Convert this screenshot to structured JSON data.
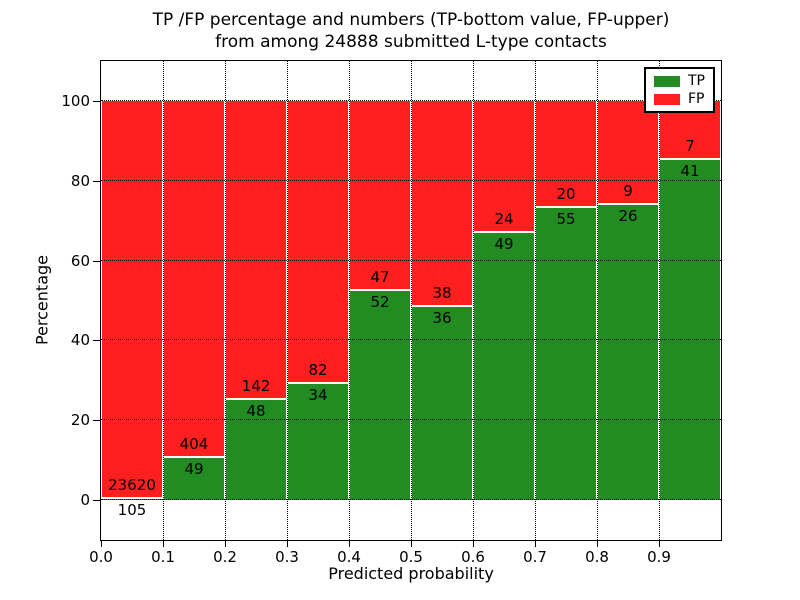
{
  "title": {
    "line1": "TP /FP percentage and numbers (TP-bottom value, FP-upper)",
    "line2": "from among 24888 submitted L-type contacts"
  },
  "axes": {
    "x_label": "Predicted probability",
    "y_label": "Percentage",
    "x_tick_labels": [
      "0.0",
      "0.1",
      "0.2",
      "0.3",
      "0.4",
      "0.5",
      "0.6",
      "0.7",
      "0.8",
      "0.9"
    ],
    "y_tick_labels": [
      "0",
      "20",
      "40",
      "60",
      "80",
      "100"
    ],
    "y_tick_values": [
      0,
      20,
      40,
      60,
      80,
      100
    ]
  },
  "legend": {
    "items": [
      {
        "label": "TP",
        "color": "#228B22"
      },
      {
        "label": "FP",
        "color": "#FF1F1F"
      }
    ]
  },
  "chart_data": {
    "type": "bar",
    "stacked": true,
    "orientation": "vertical",
    "title": "TP /FP percentage and numbers (TP-bottom value, FP-upper) from among 24888 submitted L-type contacts",
    "xlabel": "Predicted probability",
    "ylabel": "Percentage",
    "xlim": [
      0.0,
      1.0
    ],
    "ylim": [
      -10,
      110
    ],
    "bar_width": 0.1,
    "grid": "dotted",
    "legend_position": "upper right",
    "total_contacts": 24888,
    "categories": [
      "0.0-0.1",
      "0.1-0.2",
      "0.2-0.3",
      "0.3-0.4",
      "0.4-0.5",
      "0.5-0.6",
      "0.6-0.7",
      "0.7-0.8",
      "0.8-0.9",
      "0.9-1.0"
    ],
    "series": [
      {
        "name": "TP",
        "color": "#228B22",
        "counts": [
          105,
          49,
          48,
          34,
          52,
          36,
          49,
          55,
          26,
          41
        ]
      },
      {
        "name": "FP",
        "color": "#FF1F1F",
        "counts": [
          23620,
          404,
          142,
          82,
          47,
          38,
          24,
          20,
          9,
          7
        ]
      }
    ],
    "tp_percent": [
      0.44,
      10.82,
      25.26,
      29.31,
      52.53,
      48.65,
      67.12,
      73.33,
      74.29,
      85.42
    ],
    "bars_sum_to": 100
  }
}
